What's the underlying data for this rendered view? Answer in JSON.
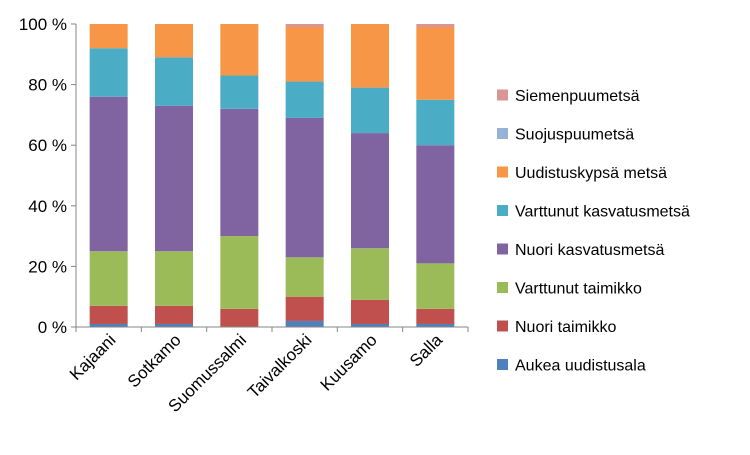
{
  "chart_data": {
    "type": "bar",
    "stacked": true,
    "percent": true,
    "categories": [
      "Kajaani",
      "Sotkamo",
      "Suomussalmi",
      "Taivalkoski",
      "Kuusamo",
      "Salla"
    ],
    "y_ticks": [
      "0 %",
      "20 %",
      "40 %",
      "60 %",
      "80 %",
      "100 %"
    ],
    "ylim": [
      0,
      100
    ],
    "grid": false,
    "legend_position": "right",
    "series": [
      {
        "name": "Aukea uudistusala",
        "color": "#4F81BD",
        "values": [
          1,
          1,
          0,
          2,
          1,
          1
        ]
      },
      {
        "name": "Nuori taimikko",
        "color": "#C0504D",
        "values": [
          6,
          6,
          6,
          8,
          8,
          5
        ]
      },
      {
        "name": "Varttunut taimikko",
        "color": "#9BBB59",
        "values": [
          18,
          18,
          24,
          13,
          17,
          15
        ]
      },
      {
        "name": "Nuori kasvatusmetsä",
        "color": "#8064A2",
        "values": [
          51,
          48,
          42,
          46,
          38,
          39
        ]
      },
      {
        "name": "Varttunut kasvatusmetsä",
        "color": "#4BACC6",
        "values": [
          16,
          16,
          11,
          12,
          15,
          15
        ]
      },
      {
        "name": "Uudistuskypsä metsä",
        "color": "#F79646",
        "values": [
          8,
          11,
          17,
          18,
          21,
          24
        ]
      },
      {
        "name": "Suojuspuumetsä",
        "color": "#95B3D7",
        "values": [
          0,
          0,
          0,
          0,
          0,
          0
        ]
      },
      {
        "name": "Siemenpuumetsä",
        "color": "#D99694",
        "values": [
          0,
          0,
          0,
          1,
          0,
          1
        ]
      }
    ]
  }
}
